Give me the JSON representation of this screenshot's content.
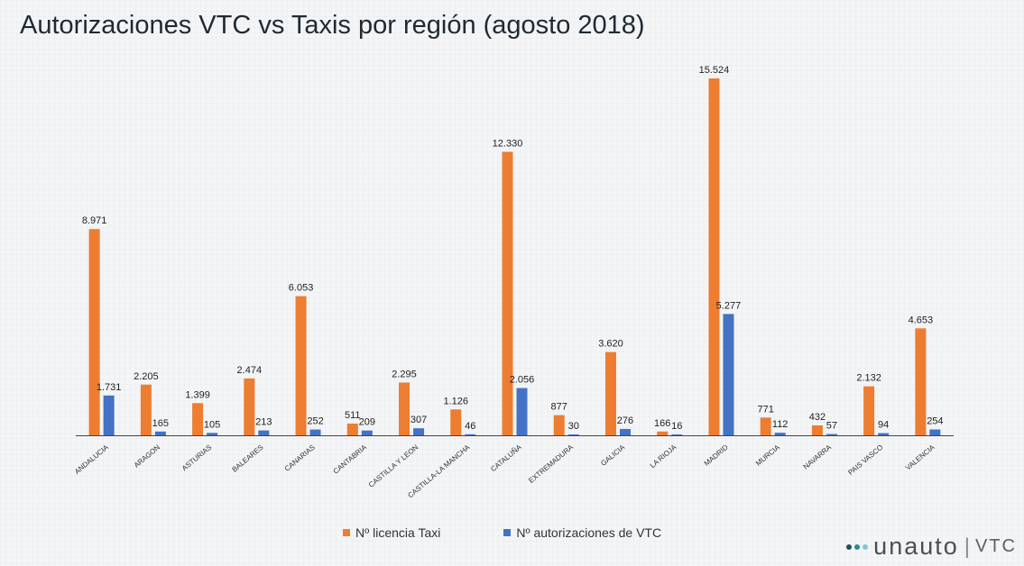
{
  "chart_data": {
    "type": "bar",
    "title": "Autorizaciones VTC vs Taxis por región (agosto 2018)",
    "categories": [
      "ANDALUCIA",
      "ARAGON",
      "ASTURIAS",
      "BALEARES",
      "CANARIAS",
      "CANTABRIA",
      "CASTILLA Y LEON",
      "CASTILLA-LA MANCHA",
      "CATALUÑA",
      "EXTREMADURA",
      "GALICIA",
      "LA RIOJA",
      "MADRID",
      "MURCIA",
      "NAVARRA",
      "PAIS VASCO",
      "VALENCIA"
    ],
    "series": [
      {
        "name": "Nº licencia Taxi",
        "color": "#ed7d31",
        "values": [
          8971,
          2205,
          1399,
          2474,
          6053,
          511,
          2295,
          1126,
          12330,
          877,
          3620,
          166,
          15524,
          771,
          432,
          2132,
          4653
        ],
        "labels": [
          "8.971",
          "2.205",
          "1.399",
          "2.474",
          "6.053",
          "511",
          "2.295",
          "1.126",
          "12.330",
          "877",
          "3.620",
          "166",
          "15.524",
          "771",
          "432",
          "2.132",
          "4.653"
        ]
      },
      {
        "name": "Nº autorizaciones de VTC",
        "color": "#4472c4",
        "values": [
          1731,
          165,
          105,
          213,
          252,
          209,
          307,
          46,
          2056,
          30,
          276,
          16,
          5277,
          112,
          57,
          94,
          254
        ],
        "labels": [
          "1.731",
          "165",
          "105",
          "213",
          "252",
          "209",
          "307",
          "46",
          "2.056",
          "30",
          "276",
          "16",
          "5.277",
          "112",
          "57",
          "94",
          "254"
        ]
      }
    ],
    "xlabel": "",
    "ylabel": "",
    "ylim": [
      0,
      16000
    ],
    "grid": false,
    "legend_position": "bottom"
  },
  "brand": {
    "name": "unauto",
    "separator": "|",
    "sub": "VTC",
    "dot_colors": [
      "#1e4f5f",
      "#2a8a9a",
      "#7fc8d0"
    ]
  }
}
